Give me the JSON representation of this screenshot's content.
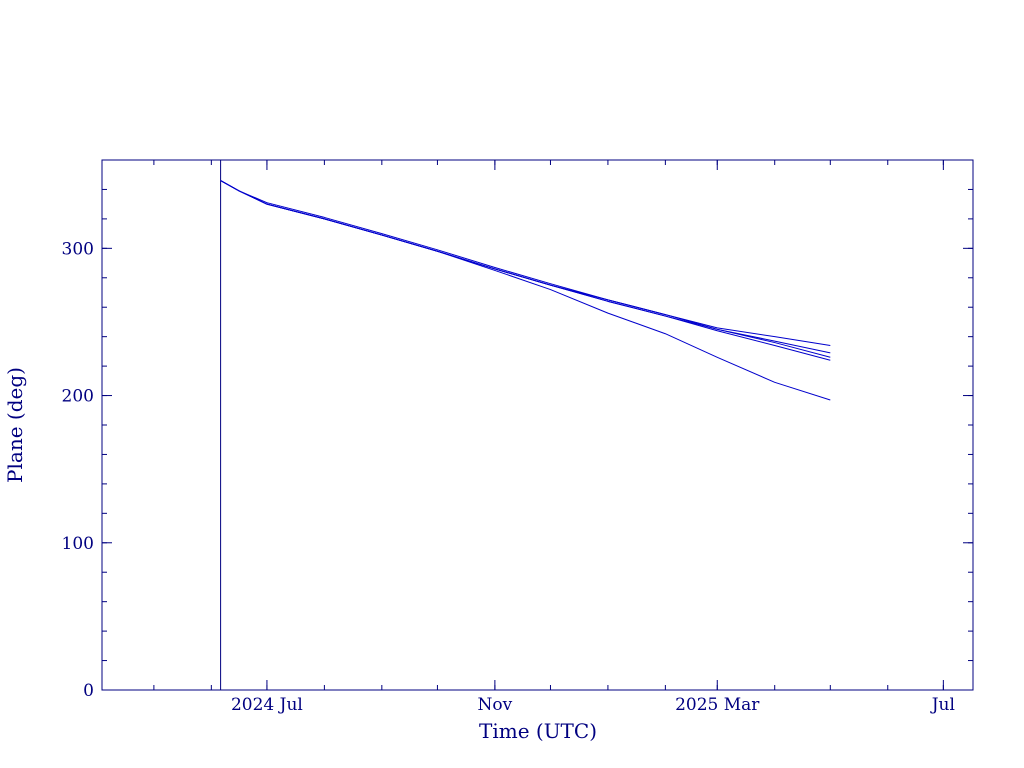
{
  "chart_data": {
    "type": "line",
    "title": "",
    "xlabel": "Time (UTC)",
    "ylabel": "Plane (deg)",
    "xlim": [
      "2024-04-03",
      "2025-07-17"
    ],
    "ylim": [
      0,
      360
    ],
    "x_ticks": [
      {
        "date": "2024-07-01",
        "label": "2024 Jul"
      },
      {
        "date": "2024-11-01",
        "label": "Nov"
      },
      {
        "date": "2025-03-01",
        "label": "2025 Mar"
      },
      {
        "date": "2025-07-01",
        "label": "Jul"
      }
    ],
    "y_ticks": [
      0,
      100,
      200,
      300
    ],
    "grid": false,
    "vline": {
      "date": "2024-06-06"
    },
    "colors": {
      "axis": "#000080",
      "series": "#0000cc",
      "marker_line": "#000080"
    },
    "series": [
      {
        "x": [
          "2024-06-06",
          "2024-06-16",
          "2024-07-01",
          "2024-08-01",
          "2024-09-01",
          "2024-10-01",
          "2024-11-01",
          "2024-12-01",
          "2025-01-01",
          "2025-02-01",
          "2025-03-01",
          "2025-04-01",
          "2025-05-01"
        ],
        "y": [
          346,
          339,
          331,
          321,
          310,
          299,
          287,
          276,
          265,
          255,
          245,
          237,
          229
        ]
      },
      {
        "x": [
          "2024-06-06",
          "2024-06-16",
          "2024-07-01",
          "2024-08-01",
          "2024-09-01",
          "2024-10-01",
          "2024-11-01",
          "2024-12-01",
          "2025-01-01",
          "2025-02-01",
          "2025-03-01",
          "2025-04-01",
          "2025-05-01"
        ],
        "y": [
          346,
          339,
          330,
          320,
          309,
          298,
          286,
          275,
          265,
          255,
          246,
          240,
          234
        ]
      },
      {
        "x": [
          "2024-06-06",
          "2024-06-16",
          "2024-07-01",
          "2024-08-01",
          "2024-09-01",
          "2024-10-01",
          "2024-11-01",
          "2024-12-01",
          "2025-01-01",
          "2025-02-01",
          "2025-03-01",
          "2025-04-01",
          "2025-05-01"
        ],
        "y": [
          346,
          339,
          330,
          320,
          309,
          298,
          286,
          275,
          264,
          254,
          245,
          236,
          226
        ]
      },
      {
        "x": [
          "2024-06-06",
          "2024-06-16",
          "2024-07-01",
          "2024-08-01",
          "2024-09-01",
          "2024-10-01",
          "2024-11-01",
          "2024-12-01",
          "2025-01-01",
          "2025-02-01",
          "2025-03-01",
          "2025-04-01",
          "2025-05-01"
        ],
        "y": [
          346,
          339,
          330,
          320,
          309,
          298,
          286,
          275,
          264,
          254,
          244,
          234,
          224
        ]
      },
      {
        "x": [
          "2024-06-06",
          "2024-06-16",
          "2024-07-01",
          "2024-08-01",
          "2024-09-01",
          "2024-10-01",
          "2024-11-01",
          "2024-12-01",
          "2025-01-01",
          "2025-02-01",
          "2025-03-01",
          "2025-04-01",
          "2025-05-01"
        ],
        "y": [
          346,
          339,
          330,
          320,
          309,
          298,
          285,
          272,
          256,
          242,
          226,
          209,
          197
        ]
      }
    ]
  }
}
